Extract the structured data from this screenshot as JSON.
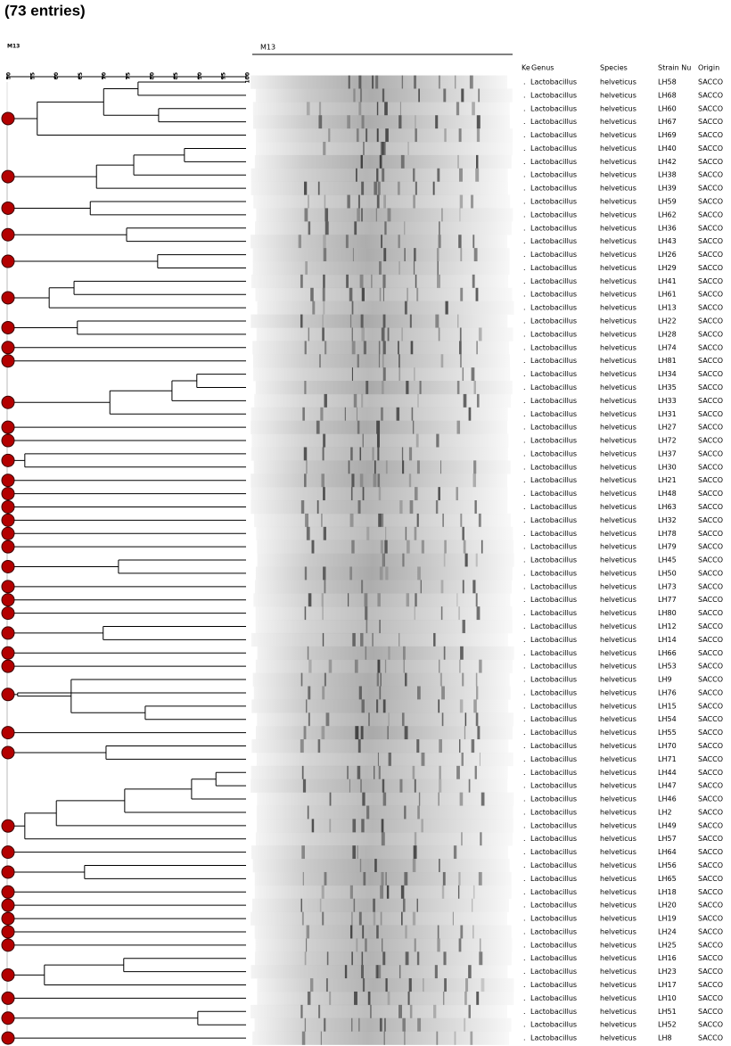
{
  "header": {
    "title": "(73 entries)",
    "tree_label": "M13",
    "gel_label": "M13"
  },
  "dendrogram": {
    "xlim": [
      50,
      100
    ],
    "xticks": [
      50,
      55,
      60,
      65,
      70,
      75,
      80,
      85,
      90,
      95,
      100
    ],
    "root": 50,
    "clusters": [
      {
        "sim": 56.3,
        "children": [
          {
            "sim": 70.2,
            "children": [
              {
                "sim": 77.4,
                "children": [
                  0,
                  1
                ]
              },
              {
                "sim": 81.7,
                "children": [
                  2,
                  3
                ]
              }
            ]
          },
          4
        ]
      },
      {
        "sim": 68.7,
        "children": [
          {
            "sim": 76.5,
            "children": [
              {
                "sim": 87.1,
                "children": [
                  5,
                  6
                ]
              },
              7
            ]
          },
          8
        ]
      },
      {
        "sim": 67.4,
        "children": [
          9,
          10
        ]
      },
      {
        "sim": 75.0,
        "children": [
          11,
          12
        ]
      },
      {
        "sim": 81.5,
        "children": [
          13,
          14
        ]
      },
      {
        "sim": 58.8,
        "children": [
          {
            "sim": 64.0,
            "children": [
              15,
              16
            ]
          },
          17
        ]
      },
      {
        "sim": 64.7,
        "children": [
          18,
          19
        ]
      },
      20,
      21,
      {
        "sim": 71.5,
        "children": [
          {
            "sim": 84.5,
            "children": [
              {
                "sim": 89.7,
                "children": [
                  22,
                  23
                ]
              },
              24
            ]
          },
          25
        ]
      },
      26,
      27,
      {
        "sim": 53.7,
        "children": [
          28,
          29
        ]
      },
      30,
      31,
      32,
      33,
      34,
      35,
      {
        "sim": 73.3,
        "children": [
          36,
          37
        ]
      },
      38,
      39,
      40,
      {
        "sim": 70.1,
        "children": [
          41,
          42
        ]
      },
      43,
      44,
      {
        "sim": 52.2,
        "children": [
          {
            "sim": 63.4,
            "children": [
              45,
              {
                "sim": 78.9,
                "children": [
                  47,
                  48
                ]
              }
            ]
          },
          46
        ]
      },
      49,
      {
        "sim": 70.7,
        "children": [
          50,
          51
        ]
      },
      {
        "sim": 53.7,
        "children": [
          {
            "sim": 60.3,
            "children": [
              {
                "sim": 74.6,
                "children": [
                  {
                    "sim": 88.6,
                    "children": [
                      {
                        "sim": 93.7,
                        "children": [
                          52,
                          53
                        ]
                      },
                      54
                    ]
                  },
                  55
                ]
              },
              56
            ]
          },
          57
        ]
      },
      58,
      {
        "sim": 66.2,
        "children": [
          59,
          60
        ]
      },
      61,
      62,
      63,
      64,
      65,
      {
        "sim": 57.8,
        "children": [
          {
            "sim": 74.4,
            "children": [
              66,
              67
            ]
          },
          68
        ]
      },
      69,
      {
        "sim": 89.9,
        "children": [
          70,
          71
        ]
      },
      72
    ]
  },
  "table": {
    "header": [
      "Ke",
      "Genus",
      "Species",
      "Strain Nu",
      "Origin"
    ],
    "rows": [
      [
        ".",
        "Lactobacillus",
        "helveticus",
        "LH58",
        "SACCO"
      ],
      [
        ".",
        "Lactobacillus",
        "helveticus",
        "LH68",
        "SACCO"
      ],
      [
        ".",
        "Lactobacillus",
        "helveticus",
        "LH60",
        "SACCO"
      ],
      [
        ".",
        "Lactobacillus",
        "helveticus",
        "LH67",
        "SACCO"
      ],
      [
        ".",
        "Lactobacillus",
        "helveticus",
        "LH69",
        "SACCO"
      ],
      [
        ".",
        "Lactobacillus",
        "helveticus",
        "LH40",
        "SACCO"
      ],
      [
        ".",
        "Lactobacillus",
        "helveticus",
        "LH42",
        "SACCO"
      ],
      [
        ".",
        "Lactobacillus",
        "helveticus",
        "LH38",
        "SACCO"
      ],
      [
        ".",
        "Lactobacillus",
        "helveticus",
        "LH39",
        "SACCO"
      ],
      [
        ".",
        "Lactobacillus",
        "helveticus",
        "LH59",
        "SACCO"
      ],
      [
        ".",
        "Lactobacillus",
        "helveticus",
        "LH62",
        "SACCO"
      ],
      [
        ".",
        "Lactobacillus",
        "helveticus",
        "LH36",
        "SACCO"
      ],
      [
        ".",
        "Lactobacillus",
        "helveticus",
        "LH43",
        "SACCO"
      ],
      [
        ".",
        "Lactobacillus",
        "helveticus",
        "LH26",
        "SACCO"
      ],
      [
        ".",
        "Lactobacillus",
        "helveticus",
        "LH29",
        "SACCO"
      ],
      [
        ".",
        "Lactobacillus",
        "helveticus",
        "LH41",
        "SACCO"
      ],
      [
        ".",
        "Lactobacillus",
        "helveticus",
        "LH61",
        "SACCO"
      ],
      [
        ".",
        "Lactobacillus",
        "helveticus",
        "LH13",
        "SACCO"
      ],
      [
        ".",
        "Lactobacillus",
        "helveticus",
        "LH22",
        "SACCO"
      ],
      [
        ".",
        "Lactobacillus",
        "helveticus",
        "LH28",
        "SACCO"
      ],
      [
        ".",
        "Lactobacillus",
        "helveticus",
        "LH74",
        "SACCO"
      ],
      [
        ".",
        "Lactobacillus",
        "helveticus",
        "LH81",
        "SACCO"
      ],
      [
        ".",
        "Lactobacillus",
        "helveticus",
        "LH34",
        "SACCO"
      ],
      [
        ".",
        "Lactobacillus",
        "helveticus",
        "LH35",
        "SACCO"
      ],
      [
        ".",
        "Lactobacillus",
        "helveticus",
        "LH33",
        "SACCO"
      ],
      [
        ".",
        "Lactobacillus",
        "helveticus",
        "LH31",
        "SACCO"
      ],
      [
        ".",
        "Lactobacillus",
        "helveticus",
        "LH27",
        "SACCO"
      ],
      [
        ".",
        "Lactobacillus",
        "helveticus",
        "LH72",
        "SACCO"
      ],
      [
        ".",
        "Lactobacillus",
        "helveticus",
        "LH37",
        "SACCO"
      ],
      [
        ".",
        "Lactobacillus",
        "helveticus",
        "LH30",
        "SACCO"
      ],
      [
        ".",
        "Lactobacillus",
        "helveticus",
        "LH21",
        "SACCO"
      ],
      [
        ".",
        "Lactobacillus",
        "helveticus",
        "LH48",
        "SACCO"
      ],
      [
        ".",
        "Lactobacillus",
        "helveticus",
        "LH63",
        "SACCO"
      ],
      [
        ".",
        "Lactobacillus",
        "helveticus",
        "LH32",
        "SACCO"
      ],
      [
        ".",
        "Lactobacillus",
        "helveticus",
        "LH78",
        "SACCO"
      ],
      [
        ".",
        "Lactobacillus",
        "helveticus",
        "LH79",
        "SACCO"
      ],
      [
        ".",
        "Lactobacillus",
        "helveticus",
        "LH45",
        "SACCO"
      ],
      [
        ".",
        "Lactobacillus",
        "helveticus",
        "LH50",
        "SACCO"
      ],
      [
        ".",
        "Lactobacillus",
        "helveticus",
        "LH73",
        "SACCO"
      ],
      [
        ".",
        "Lactobacillus",
        "helveticus",
        "LH77",
        "SACCO"
      ],
      [
        ".",
        "Lactobacillus",
        "helveticus",
        "LH80",
        "SACCO"
      ],
      [
        ".",
        "Lactobacillus",
        "helveticus",
        "LH12",
        "SACCO"
      ],
      [
        ".",
        "Lactobacillus",
        "helveticus",
        "LH14",
        "SACCO"
      ],
      [
        ".",
        "Lactobacillus",
        "helveticus",
        "LH66",
        "SACCO"
      ],
      [
        ".",
        "Lactobacillus",
        "helveticus",
        "LH53",
        "SACCO"
      ],
      [
        ".",
        "Lactobacillus",
        "helveticus",
        "LH9",
        "SACCO"
      ],
      [
        ".",
        "Lactobacillus",
        "helveticus",
        "LH76",
        "SACCO"
      ],
      [
        ".",
        "Lactobacillus",
        "helveticus",
        "LH15",
        "SACCO"
      ],
      [
        ".",
        "Lactobacillus",
        "helveticus",
        "LH54",
        "SACCO"
      ],
      [
        ".",
        "Lactobacillus",
        "helveticus",
        "LH55",
        "SACCO"
      ],
      [
        ".",
        "Lactobacillus",
        "helveticus",
        "LH70",
        "SACCO"
      ],
      [
        ".",
        "Lactobacillus",
        "helveticus",
        "LH71",
        "SACCO"
      ],
      [
        ".",
        "Lactobacillus",
        "helveticus",
        "LH44",
        "SACCO"
      ],
      [
        ".",
        "Lactobacillus",
        "helveticus",
        "LH47",
        "SACCO"
      ],
      [
        ".",
        "Lactobacillus",
        "helveticus",
        "LH46",
        "SACCO"
      ],
      [
        ".",
        "Lactobacillus",
        "helveticus",
        "LH2",
        "SACCO"
      ],
      [
        ".",
        "Lactobacillus",
        "helveticus",
        "LH49",
        "SACCO"
      ],
      [
        ".",
        "Lactobacillus",
        "helveticus",
        "LH57",
        "SACCO"
      ],
      [
        ".",
        "Lactobacillus",
        "helveticus",
        "LH64",
        "SACCO"
      ],
      [
        ".",
        "Lactobacillus",
        "helveticus",
        "LH56",
        "SACCO"
      ],
      [
        ".",
        "Lactobacillus",
        "helveticus",
        "LH65",
        "SACCO"
      ],
      [
        ".",
        "Lactobacillus",
        "helveticus",
        "LH18",
        "SACCO"
      ],
      [
        ".",
        "Lactobacillus",
        "helveticus",
        "LH20",
        "SACCO"
      ],
      [
        ".",
        "Lactobacillus",
        "helveticus",
        "LH19",
        "SACCO"
      ],
      [
        ".",
        "Lactobacillus",
        "helveticus",
        "LH24",
        "SACCO"
      ],
      [
        ".",
        "Lactobacillus",
        "helveticus",
        "LH25",
        "SACCO"
      ],
      [
        ".",
        "Lactobacillus",
        "helveticus",
        "LH16",
        "SACCO"
      ],
      [
        ".",
        "Lactobacillus",
        "helveticus",
        "LH23",
        "SACCO"
      ],
      [
        ".",
        "Lactobacillus",
        "helveticus",
        "LH17",
        "SACCO"
      ],
      [
        ".",
        "Lactobacillus",
        "helveticus",
        "LH10",
        "SACCO"
      ],
      [
        ".",
        "Lactobacillus",
        "helveticus",
        "LH51",
        "SACCO"
      ],
      [
        ".",
        "Lactobacillus",
        "helveticus",
        "LH52",
        "SACCO"
      ],
      [
        ".",
        "Lactobacillus",
        "helveticus",
        "LH8",
        "SACCO"
      ]
    ]
  }
}
